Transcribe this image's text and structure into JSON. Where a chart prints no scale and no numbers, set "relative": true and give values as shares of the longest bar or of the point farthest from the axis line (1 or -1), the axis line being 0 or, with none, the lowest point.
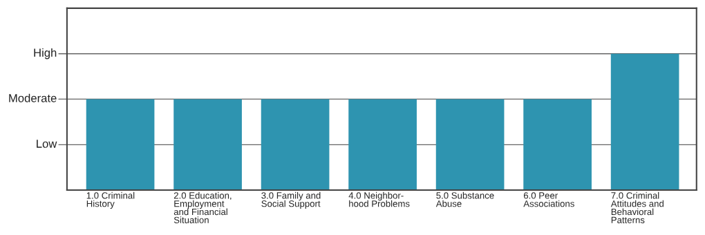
{
  "chart_data": {
    "type": "bar",
    "categories": [
      "1.0 Criminal\nHistory",
      "2.0 Education,\nEmployment\nand Financial\nSituation",
      "3.0 Family and\nSocial Support",
      "4.0 Neighbor-\nhood Problems",
      "5.0 Substance\nAbuse",
      "6.0 Peer\nAssociations",
      "7.0 Criminal\nAttitudes and\nBehavioral\nPatterns"
    ],
    "values": [
      0.667,
      0.667,
      0.667,
      0.667,
      0.667,
      0.667,
      1
    ],
    "color": "#2e94b0",
    "relative": true,
    "ref_lines": [
      {
        "axis": "y",
        "value": 0.333,
        "label": "Low"
      },
      {
        "axis": "y",
        "value": 0.667,
        "label": "Moderate"
      },
      {
        "axis": "y",
        "value": 1,
        "label": "High"
      }
    ]
  }
}
